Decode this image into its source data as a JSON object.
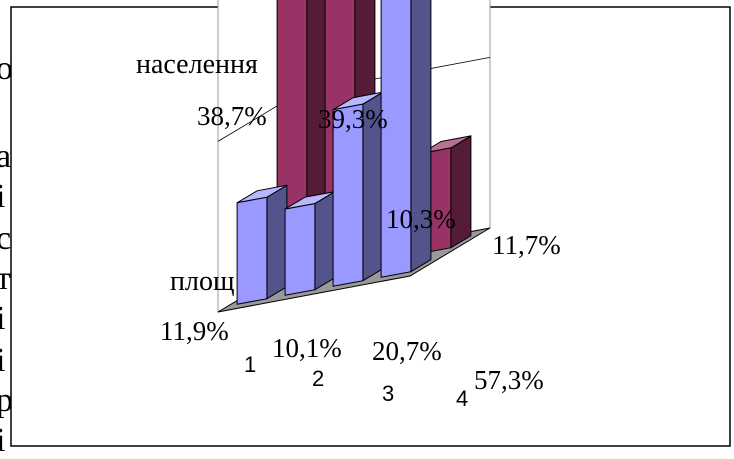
{
  "background_text_fragments": [
    "о",
    "а",
    "і",
    "с",
    "т",
    "і",
    "і",
    "р",
    "і"
  ],
  "chart_data": {
    "type": "bar",
    "style": "3d-clustered-columns",
    "categories": [
      "1",
      "2",
      "3",
      "4"
    ],
    "series": [
      {
        "name": "населення",
        "values": [
          38.7,
          39.3,
          10.3,
          11.7
        ],
        "labels": [
          "38,7%",
          "39,3%",
          "10,3%",
          "11,7%"
        ]
      },
      {
        "name": "площ",
        "values": [
          11.9,
          10.1,
          20.7,
          57.3
        ],
        "labels": [
          "11,9%",
          "10,1%",
          "20,7%",
          "57,3%"
        ]
      }
    ],
    "ylim": [
      0,
      60
    ],
    "grid": true,
    "colors": {
      "населення": "#993366",
      "площ": "#9999ff",
      "floor": "#999999"
    }
  }
}
